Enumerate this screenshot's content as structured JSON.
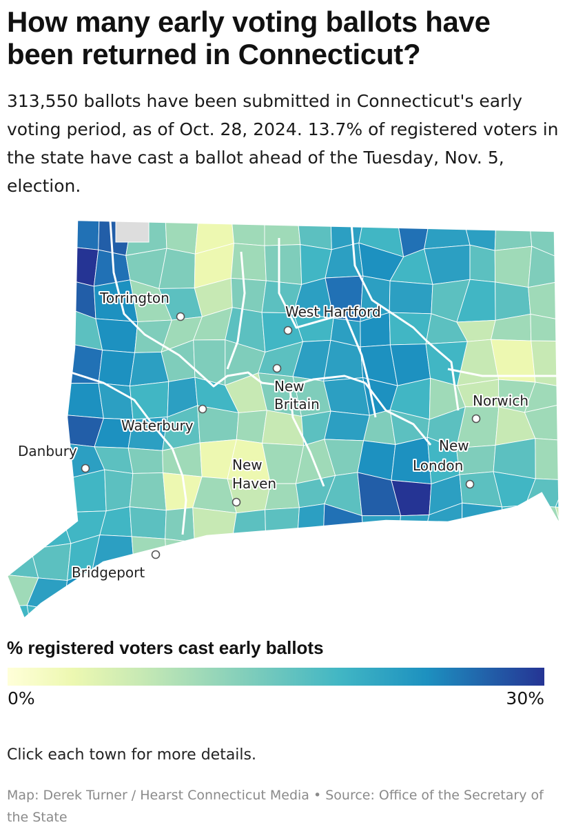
{
  "header": {
    "title": "How many early voting ballots have been returned in Connecticut?",
    "subtitle": "313,550 ballots have been submitted in Connecticut's early voting period, as of Oct. 28, 2024. 13.7% of registered voters in the state have cast a ballot ahead of the Tuesday, Nov. 5, election."
  },
  "map": {
    "region": "Connecticut",
    "cities": [
      {
        "id": "torrington",
        "name": "Torrington"
      },
      {
        "id": "west-hartford",
        "name": "West Hartford"
      },
      {
        "id": "new-britain",
        "line1": "New",
        "line2": "Britain"
      },
      {
        "id": "norwich",
        "name": "Norwich"
      },
      {
        "id": "waterbury",
        "name": "Waterbury"
      },
      {
        "id": "danbury",
        "name": "Danbury"
      },
      {
        "id": "new-haven",
        "line1": "New",
        "line2": "Haven"
      },
      {
        "id": "new-london",
        "line1": "New",
        "line2": "London"
      },
      {
        "id": "bridgeport",
        "name": "Bridgeport"
      }
    ],
    "colors": {
      "low": "#ffffd9",
      "mid": "#7fcdbb",
      "high": "#253494",
      "no_data": "#dddddd",
      "boundary": "#ffffff"
    }
  },
  "legend": {
    "title": "% registered voters cast early ballots",
    "min_label": "0%",
    "max_label": "30%"
  },
  "footer": {
    "instructions": "Click each town for more details.",
    "credit": "Map: Derek Turner / Hearst Connecticut Media • Source: Office of the Secretary of the State"
  }
}
